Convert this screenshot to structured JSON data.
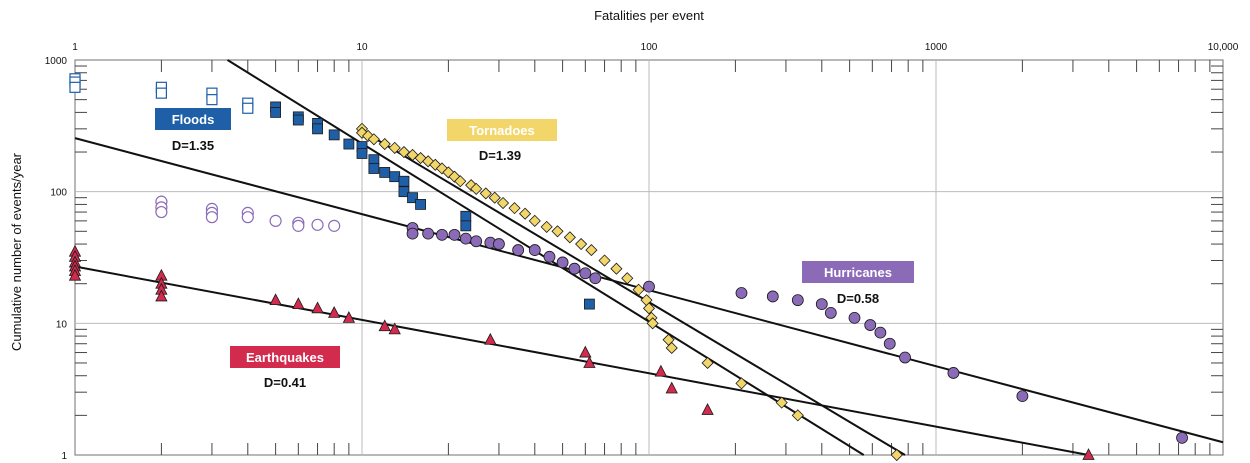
{
  "chart_data": {
    "type": "scatter",
    "xlabel": "Fatalities per event",
    "ylabel": "Cumulative number of events/year",
    "x_scale": "log",
    "y_scale": "log",
    "xlim": [
      1,
      10000
    ],
    "ylim": [
      1,
      1000
    ],
    "x_ticks": [
      "1",
      "10",
      "100",
      "1000",
      "10,000"
    ],
    "y_ticks": [
      "1000",
      "100",
      "10",
      "1"
    ],
    "grid": true,
    "series": [
      {
        "name": "Floods",
        "label": "D=1.35",
        "color": "#1f5fa8",
        "marker": "square",
        "open_points": [
          [
            1,
            720
          ],
          [
            1,
            680
          ],
          [
            1,
            620
          ],
          [
            2,
            620
          ],
          [
            2,
            560
          ],
          [
            3,
            560
          ],
          [
            3,
            500
          ],
          [
            4,
            470
          ],
          [
            4,
            430
          ]
        ],
        "points": [
          [
            5,
            440
          ],
          [
            5,
            400
          ],
          [
            6,
            370
          ],
          [
            6,
            350
          ],
          [
            7,
            330
          ],
          [
            7,
            300
          ],
          [
            8,
            270
          ],
          [
            9,
            230
          ],
          [
            10,
            220
          ],
          [
            10,
            195
          ],
          [
            11,
            175
          ],
          [
            11,
            150
          ],
          [
            12,
            140
          ],
          [
            13,
            130
          ],
          [
            14,
            120
          ],
          [
            14,
            100
          ],
          [
            15,
            90
          ],
          [
            16,
            80
          ],
          [
            23,
            65
          ],
          [
            23,
            55
          ],
          [
            62,
            14
          ]
        ],
        "fit": [
          [
            3.4,
            1000
          ],
          [
            560,
            1
          ]
        ]
      },
      {
        "name": "Tornadoes",
        "label": "D=1.39",
        "color": "#f2d66a",
        "marker": "diamond",
        "points": [
          [
            10,
            300
          ],
          [
            10,
            280
          ],
          [
            10.5,
            265
          ],
          [
            11,
            250
          ],
          [
            12,
            230
          ],
          [
            13,
            215
          ],
          [
            14,
            200
          ],
          [
            15,
            190
          ],
          [
            16,
            180
          ],
          [
            17,
            170
          ],
          [
            18,
            160
          ],
          [
            19,
            150
          ],
          [
            20,
            140
          ],
          [
            21,
            130
          ],
          [
            22,
            120
          ],
          [
            24,
            112
          ],
          [
            25,
            105
          ],
          [
            27,
            97
          ],
          [
            29,
            90
          ],
          [
            31,
            82
          ],
          [
            34,
            75
          ],
          [
            37,
            68
          ],
          [
            40,
            60
          ],
          [
            44,
            54
          ],
          [
            48,
            50
          ],
          [
            53,
            45
          ],
          [
            58,
            40
          ],
          [
            63,
            36
          ],
          [
            70,
            30
          ],
          [
            77,
            26
          ],
          [
            84,
            22
          ],
          [
            92,
            18
          ],
          [
            98,
            15
          ],
          [
            100,
            13
          ],
          [
            102,
            11
          ],
          [
            103,
            10
          ],
          [
            117,
            7.5
          ],
          [
            120,
            6.5
          ],
          [
            160,
            5
          ],
          [
            210,
            3.5
          ],
          [
            290,
            2.5
          ],
          [
            330,
            2
          ],
          [
            730,
            1
          ]
        ],
        "fit": [
          [
            10,
            290
          ],
          [
            780,
            1
          ]
        ]
      },
      {
        "name": "Hurricanes",
        "label": "D=0.58",
        "color": "#8b6bb8",
        "marker": "circle",
        "open_points": [
          [
            2,
            84
          ],
          [
            2,
            76
          ],
          [
            2,
            70
          ],
          [
            3,
            74
          ],
          [
            3,
            69
          ],
          [
            3,
            64
          ],
          [
            4,
            69
          ],
          [
            4,
            64
          ],
          [
            5,
            60
          ],
          [
            6,
            58
          ],
          [
            6,
            55
          ],
          [
            7,
            56
          ],
          [
            8,
            55
          ]
        ],
        "points": [
          [
            15,
            53
          ],
          [
            15,
            48
          ],
          [
            17,
            48
          ],
          [
            19,
            47
          ],
          [
            21,
            47
          ],
          [
            23,
            44
          ],
          [
            25,
            42
          ],
          [
            28,
            41
          ],
          [
            30,
            40
          ],
          [
            35,
            36
          ],
          [
            40,
            36
          ],
          [
            45,
            32
          ],
          [
            50,
            29
          ],
          [
            55,
            26
          ],
          [
            60,
            24
          ],
          [
            65,
            22
          ],
          [
            100,
            19
          ],
          [
            210,
            17
          ],
          [
            270,
            16
          ],
          [
            330,
            15
          ],
          [
            400,
            14
          ],
          [
            430,
            12
          ],
          [
            520,
            11
          ],
          [
            590,
            9.7
          ],
          [
            640,
            8.5
          ],
          [
            690,
            7
          ],
          [
            780,
            5.5
          ],
          [
            1150,
            4.2
          ],
          [
            2000,
            2.8
          ],
          [
            7200,
            1.35
          ]
        ],
        "fit": [
          [
            1,
            255
          ],
          [
            10000,
            1.25
          ]
        ]
      },
      {
        "name": "Earthquakes",
        "label": "D=0.41",
        "color": "#d22b4e",
        "marker": "triangle",
        "points": [
          [
            1,
            35
          ],
          [
            1,
            32
          ],
          [
            1,
            29
          ],
          [
            1,
            27
          ],
          [
            1,
            25
          ],
          [
            1,
            23
          ],
          [
            2,
            23
          ],
          [
            2,
            20
          ],
          [
            2,
            18
          ],
          [
            2,
            16
          ],
          [
            5,
            15
          ],
          [
            6,
            14
          ],
          [
            7,
            13
          ],
          [
            8,
            12
          ],
          [
            9,
            11
          ],
          [
            12,
            9.5
          ],
          [
            13,
            9
          ],
          [
            28,
            7.5
          ],
          [
            60,
            6
          ],
          [
            62,
            5
          ],
          [
            110,
            4.3
          ],
          [
            120,
            3.2
          ],
          [
            160,
            2.2
          ],
          [
            3400,
            1
          ]
        ],
        "fit": [
          [
            1,
            27
          ],
          [
            3400,
            1
          ]
        ]
      }
    ]
  }
}
